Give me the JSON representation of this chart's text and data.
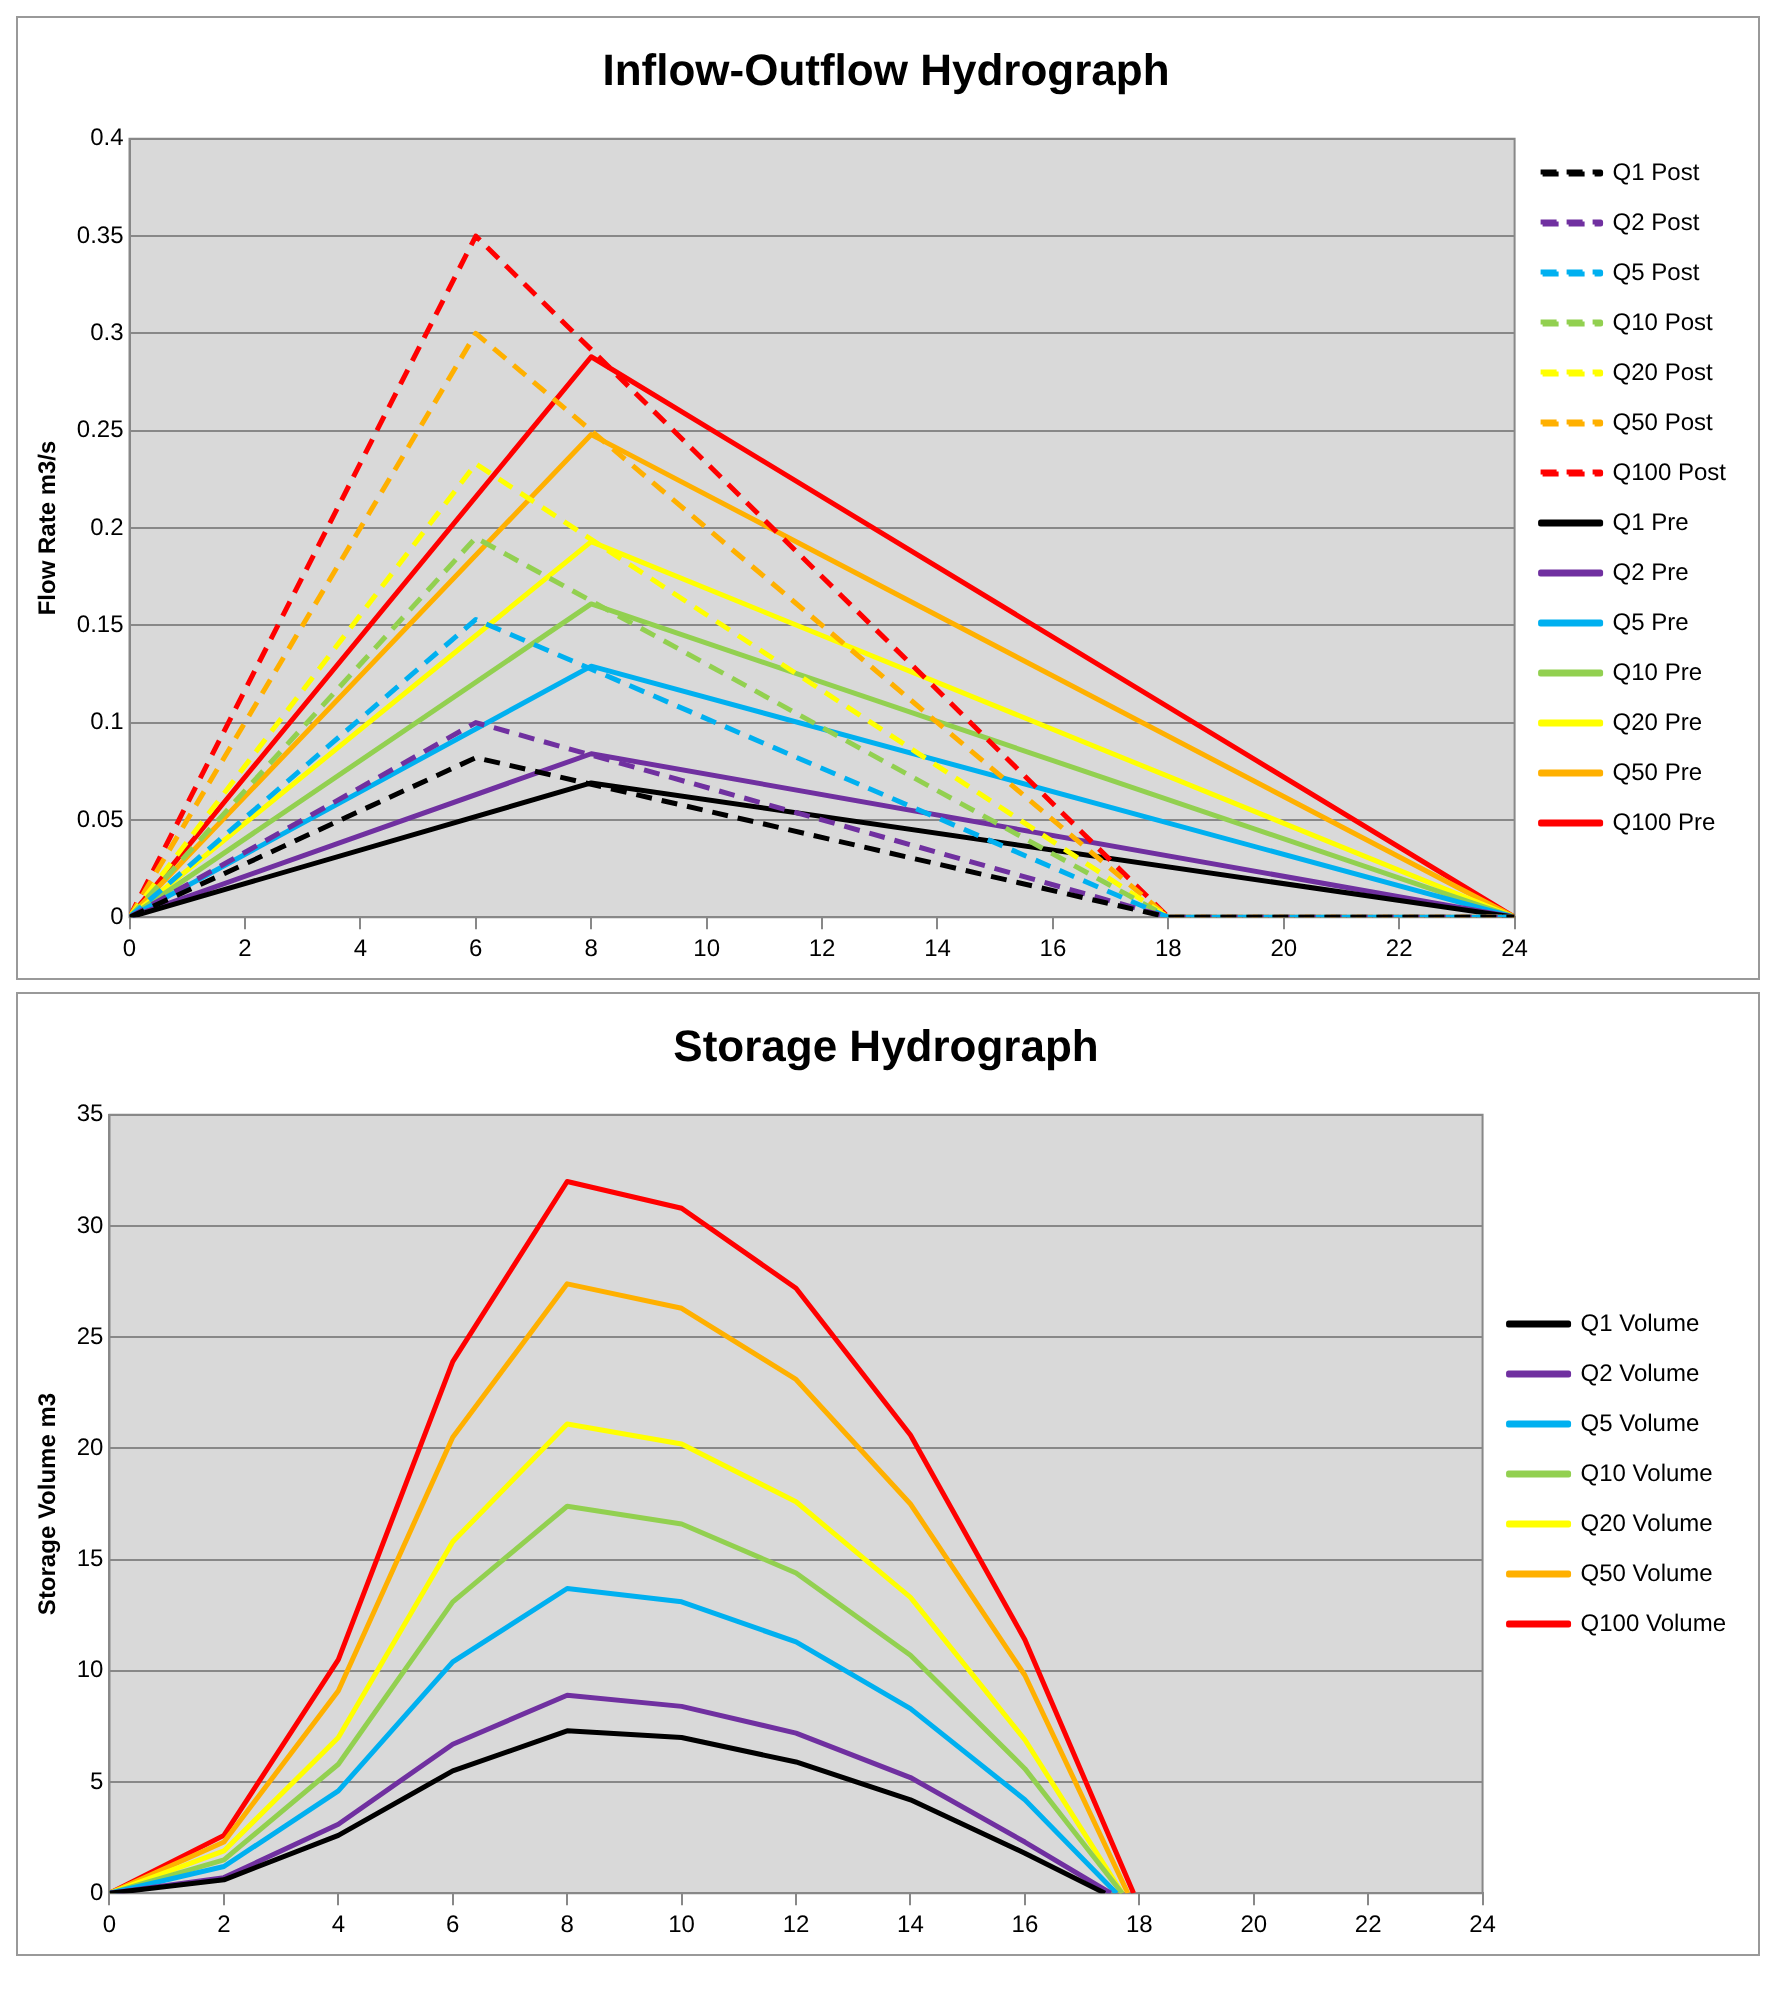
{
  "chart_data": [
    {
      "type": "line",
      "title": "Inflow-Outflow Hydrograph",
      "ylabel": "Flow Rate m3/s",
      "xlim": [
        0,
        24
      ],
      "xticks": [
        0,
        2,
        4,
        6,
        8,
        10,
        12,
        14,
        16,
        18,
        20,
        22,
        24
      ],
      "ylim": [
        0,
        0.4
      ],
      "yticks": [
        0,
        0.05,
        0.1,
        0.15,
        0.2,
        0.25,
        0.3,
        0.35,
        0.4
      ],
      "grid": "y",
      "legend": "right",
      "marker": "none",
      "series": [
        {
          "name": "Q1 Post",
          "color": "#000000",
          "line_style": "dashed",
          "x": [
            0,
            6,
            18,
            24
          ],
          "values": [
            0,
            0.082,
            0,
            0
          ]
        },
        {
          "name": "Q2 Post",
          "color": "#7030a0",
          "line_style": "dashed",
          "x": [
            0,
            6,
            18,
            24
          ],
          "values": [
            0,
            0.1,
            0,
            0
          ]
        },
        {
          "name": "Q5 Post",
          "color": "#00b0f0",
          "line_style": "dashed",
          "x": [
            0,
            6,
            18,
            24
          ],
          "values": [
            0,
            0.153,
            0,
            0
          ]
        },
        {
          "name": "Q10 Post",
          "color": "#92d050",
          "line_style": "dashed",
          "x": [
            0,
            6,
            18,
            24
          ],
          "values": [
            0,
            0.195,
            0,
            0
          ]
        },
        {
          "name": "Q20 Post",
          "color": "#ffff00",
          "line_style": "dashed",
          "x": [
            0,
            6,
            18,
            24
          ],
          "values": [
            0,
            0.233,
            0,
            0
          ]
        },
        {
          "name": "Q50 Post",
          "color": "#ffb000",
          "line_style": "dashed",
          "x": [
            0,
            6,
            18,
            24
          ],
          "values": [
            0,
            0.3,
            0,
            0
          ]
        },
        {
          "name": "Q100 Post",
          "color": "#ff0000",
          "line_style": "dashed",
          "x": [
            0,
            6,
            18,
            24
          ],
          "values": [
            0,
            0.35,
            0,
            0
          ]
        },
        {
          "name": "Q1 Pre",
          "color": "#000000",
          "line_style": "solid",
          "x": [
            0,
            8,
            24
          ],
          "values": [
            0,
            0.069,
            0
          ]
        },
        {
          "name": "Q2 Pre",
          "color": "#7030a0",
          "line_style": "solid",
          "x": [
            0,
            8,
            24
          ],
          "values": [
            0,
            0.084,
            0
          ]
        },
        {
          "name": "Q5 Pre",
          "color": "#00b0f0",
          "line_style": "solid",
          "x": [
            0,
            8,
            24
          ],
          "values": [
            0,
            0.129,
            0
          ]
        },
        {
          "name": "Q10 Pre",
          "color": "#92d050",
          "line_style": "solid",
          "x": [
            0,
            8,
            24
          ],
          "values": [
            0,
            0.161,
            0
          ]
        },
        {
          "name": "Q20 Pre",
          "color": "#ffff00",
          "line_style": "solid",
          "x": [
            0,
            8,
            24
          ],
          "values": [
            0,
            0.193,
            0
          ]
        },
        {
          "name": "Q50 Pre",
          "color": "#ffb000",
          "line_style": "solid",
          "x": [
            0,
            8,
            24
          ],
          "values": [
            0,
            0.248,
            0
          ]
        },
        {
          "name": "Q100 Pre",
          "color": "#ff0000",
          "line_style": "solid",
          "x": [
            0,
            8,
            24
          ],
          "values": [
            0,
            0.288,
            0
          ]
        }
      ]
    },
    {
      "type": "line",
      "title": "Storage Hydrograph",
      "ylabel": "Storage Volume m3",
      "xlim": [
        0,
        24
      ],
      "xticks": [
        0,
        2,
        4,
        6,
        8,
        10,
        12,
        14,
        16,
        18,
        20,
        22,
        24
      ],
      "ylim": [
        0,
        35
      ],
      "yticks": [
        0,
        5,
        10,
        15,
        20,
        25,
        30,
        35
      ],
      "grid": "y",
      "legend": "right",
      "marker": "none",
      "series": [
        {
          "name": "Q1 Volume",
          "color": "#000000",
          "x": [
            0,
            2,
            4,
            6,
            8,
            10,
            12,
            14,
            16,
            17.4
          ],
          "values": [
            0,
            0.6,
            2.6,
            5.5,
            7.3,
            7.0,
            5.9,
            4.2,
            1.8,
            0
          ]
        },
        {
          "name": "Q2 Volume",
          "color": "#7030a0",
          "x": [
            0,
            2,
            4,
            6,
            8,
            10,
            12,
            14,
            16,
            17.5
          ],
          "values": [
            0,
            0.7,
            3.1,
            6.7,
            8.9,
            8.4,
            7.2,
            5.2,
            2.3,
            0
          ]
        },
        {
          "name": "Q5 Volume",
          "color": "#00b0f0",
          "x": [
            0,
            2,
            4,
            6,
            8,
            10,
            12,
            14,
            16,
            17.6
          ],
          "values": [
            0,
            1.2,
            4.6,
            10.4,
            13.7,
            13.1,
            11.3,
            8.3,
            4.2,
            0
          ]
        },
        {
          "name": "Q10 Volume",
          "color": "#92d050",
          "x": [
            0,
            2,
            4,
            6,
            8,
            10,
            12,
            14,
            16,
            17.7
          ],
          "values": [
            0,
            1.5,
            5.8,
            13.1,
            17.4,
            16.6,
            14.4,
            10.7,
            5.6,
            0
          ]
        },
        {
          "name": "Q20 Volume",
          "color": "#ffff00",
          "x": [
            0,
            2,
            4,
            6,
            8,
            10,
            12,
            14,
            16,
            17.7
          ],
          "values": [
            0,
            1.9,
            7.0,
            15.8,
            21.1,
            20.2,
            17.6,
            13.3,
            6.9,
            0
          ]
        },
        {
          "name": "Q50 Volume",
          "color": "#ffb000",
          "x": [
            0,
            2,
            4,
            6,
            8,
            10,
            12,
            14,
            16,
            17.8
          ],
          "values": [
            0,
            2.3,
            9.1,
            20.5,
            27.4,
            26.3,
            23.1,
            17.5,
            9.8,
            0
          ]
        },
        {
          "name": "Q100 Volume",
          "color": "#ff0000",
          "x": [
            0,
            2,
            4,
            6,
            8,
            10,
            12,
            14,
            16,
            17.9
          ],
          "values": [
            0,
            2.6,
            10.5,
            23.9,
            32.0,
            30.8,
            27.2,
            20.6,
            11.4,
            0
          ]
        }
      ]
    }
  ]
}
